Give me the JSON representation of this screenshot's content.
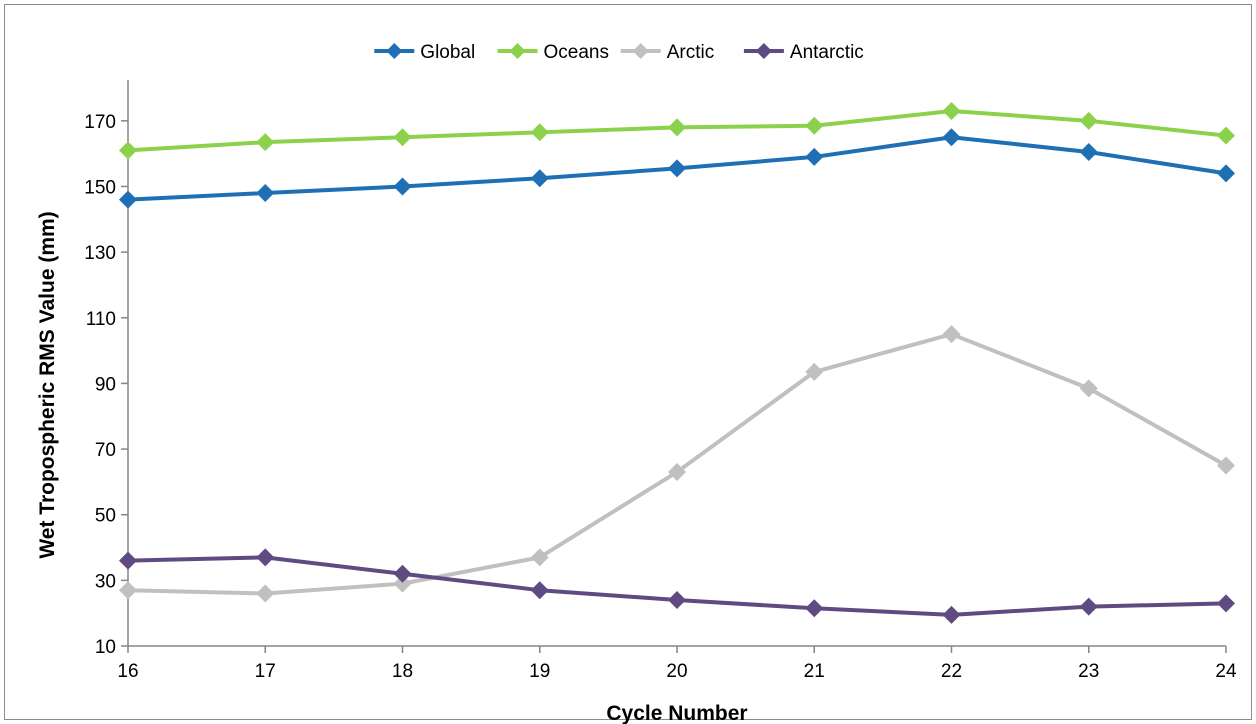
{
  "chart_data": {
    "type": "line",
    "xlabel": "Cycle Number",
    "ylabel": "Wet Tropospheric  RMS Value (mm)",
    "x": [
      16,
      17,
      18,
      19,
      20,
      21,
      22,
      23,
      24
    ],
    "xlim": [
      16,
      24
    ],
    "ylim": [
      10,
      180
    ],
    "yticks": [
      10,
      30,
      50,
      70,
      90,
      110,
      130,
      150,
      170
    ],
    "grid": false,
    "legend_position": "top",
    "series": [
      {
        "name": "Global",
        "color": "#1f6fb5",
        "values": [
          146,
          148,
          150,
          152.5,
          155.5,
          159,
          165,
          160.5,
          154
        ]
      },
      {
        "name": "Oceans",
        "color": "#8cd14c",
        "values": [
          161,
          163.5,
          165,
          166.5,
          168,
          168.5,
          173,
          170,
          165.5
        ]
      },
      {
        "name": "Arctic",
        "color": "#c0c0c0",
        "values": [
          27,
          26,
          29,
          37,
          63,
          93.5,
          105,
          88.5,
          65
        ]
      },
      {
        "name": "Antarctic",
        "color": "#5f4b82",
        "values": [
          36,
          37,
          32,
          27,
          24,
          21.5,
          19.5,
          22,
          23
        ]
      }
    ]
  }
}
